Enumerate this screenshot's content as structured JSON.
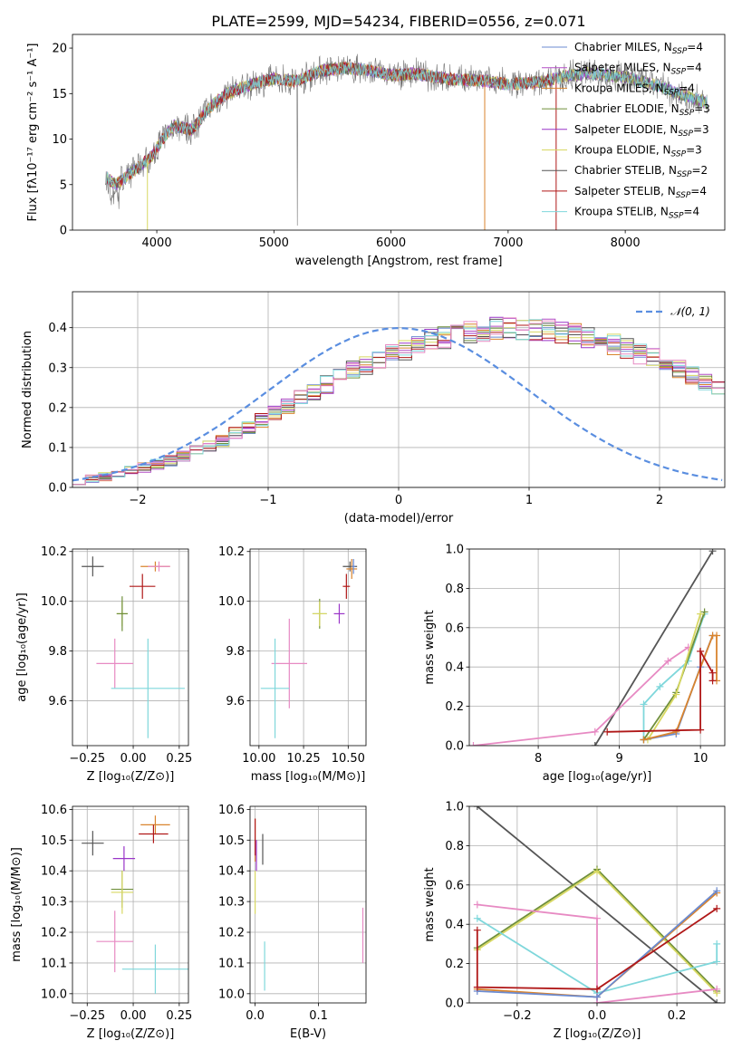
{
  "colors": {
    "Chabrier MILES": "#6b8bd1",
    "Salpeter MILES": "#b44fc6",
    "Kroupa MILES": "#d9842e",
    "Chabrier ELODIE": "#6f8f3b",
    "Salpeter ELODIE": "#9a35c8",
    "Kroupa ELODIE": "#d8d862",
    "Chabrier STELIB": "#555555",
    "Salpeter STELIB": "#b01818",
    "Kroupa STELIB": "#7fd7db",
    "extra_pink": "#e78ac3",
    "gaussian": "#5a8ee0"
  },
  "chart_data": [
    {
      "id": "spectrum",
      "type": "line",
      "title": "PLATE=2599, MJD=54234, FIBERID=0556, z=0.071",
      "xlabel": "wavelength [Angstrom, rest frame]",
      "ylabel": "Flux [fλ10⁻¹⁷ erg cm⁻² s⁻¹ A⁻¹]",
      "xlim": [
        3280,
        8850
      ],
      "ylim": [
        0,
        21.5
      ],
      "xticks": [
        4000,
        5000,
        6000,
        7000,
        8000
      ],
      "yticks": [
        0,
        5,
        10,
        15,
        20
      ],
      "legend_position": "top-right",
      "legend": [
        {
          "name": "Chabrier MILES, N_SSP=4",
          "color": "#6b8bd1"
        },
        {
          "name": "Salpeter MILES, N_SSP=4",
          "color": "#b44fc6"
        },
        {
          "name": "Kroupa MILES, N_SSP=4",
          "color": "#d9842e"
        },
        {
          "name": "Chabrier ELODIE, N_SSP=3",
          "color": "#6f8f3b"
        },
        {
          "name": "Salpeter ELODIE, N_SSP=3",
          "color": "#9a35c8"
        },
        {
          "name": "Kroupa ELODIE, N_SSP=3",
          "color": "#d8d862"
        },
        {
          "name": "Chabrier STELIB, N_SSP=2",
          "color": "#555555"
        },
        {
          "name": "Salpeter STELIB, N_SSP=4",
          "color": "#b01818"
        },
        {
          "name": "Kroupa STELIB, N_SSP=4",
          "color": "#7fd7db"
        }
      ],
      "continuum": [
        [
          3550,
          6.0
        ],
        [
          3650,
          5.0
        ],
        [
          3800,
          6.5
        ],
        [
          3950,
          8.0
        ],
        [
          4050,
          10.0
        ],
        [
          4150,
          11.5
        ],
        [
          4300,
          11.0
        ],
        [
          4450,
          13.5
        ],
        [
          4600,
          15.0
        ],
        [
          4800,
          16.0
        ],
        [
          5000,
          16.6
        ],
        [
          5200,
          16.4
        ],
        [
          5400,
          17.5
        ],
        [
          5600,
          17.8
        ],
        [
          5800,
          17.6
        ],
        [
          6000,
          17.0
        ],
        [
          6200,
          17.2
        ],
        [
          6500,
          16.6
        ],
        [
          6800,
          16.4
        ],
        [
          7000,
          16.0
        ],
        [
          7300,
          16.3
        ],
        [
          7500,
          17.0
        ],
        [
          7700,
          17.2
        ],
        [
          8000,
          16.8
        ],
        [
          8300,
          15.8
        ],
        [
          8500,
          14.8
        ],
        [
          8700,
          14.0
        ]
      ]
    },
    {
      "id": "residuals",
      "type": "bar",
      "xlabel": "(data-model)/error",
      "ylabel": "Normed distribution",
      "xlim": [
        -2.5,
        2.5
      ],
      "ylim": [
        0,
        0.49
      ],
      "xticks": [
        -2,
        -1,
        0,
        1,
        2
      ],
      "yticks": [
        0.0,
        0.1,
        0.2,
        0.3,
        0.4
      ],
      "legend": [
        {
          "name": "𝒩(0, 1)",
          "color": "#5a8ee0"
        }
      ],
      "legend_position": "top-right",
      "bin_width": 0.1,
      "bin_start": -2.5,
      "envelope": [
        0.018,
        0.022,
        0.028,
        0.035,
        0.042,
        0.05,
        0.058,
        0.066,
        0.078,
        0.09,
        0.104,
        0.118,
        0.134,
        0.15,
        0.168,
        0.186,
        0.205,
        0.222,
        0.24,
        0.258,
        0.275,
        0.292,
        0.306,
        0.32,
        0.334,
        0.346,
        0.358,
        0.368,
        0.376,
        0.384,
        0.39,
        0.394,
        0.398,
        0.4,
        0.399,
        0.397,
        0.393,
        0.388,
        0.382,
        0.374,
        0.366,
        0.356,
        0.346,
        0.334,
        0.322,
        0.308,
        0.294,
        0.28,
        0.264,
        0.248
      ]
    },
    {
      "id": "age_vs_Z",
      "type": "scatter",
      "xlabel": "Z [log₁₀(Z/Z⊙)]",
      "ylabel": "age [log₁₀(age/yr)]",
      "xlim": [
        -0.33,
        0.3
      ],
      "ylim": [
        9.42,
        10.21
      ],
      "xticks": [
        -0.25,
        0.0,
        0.25
      ],
      "yticks": [
        9.6,
        9.8,
        10.0,
        10.2
      ],
      "points": [
        {
          "x": -0.22,
          "y": 10.14,
          "xerr": 0.06,
          "yerr": 0.04,
          "color": "#555555"
        },
        {
          "x": 0.12,
          "y": 10.14,
          "xerr": 0.08,
          "yerr": 0.02,
          "color": "#d9842e"
        },
        {
          "x": 0.14,
          "y": 10.14,
          "xerr": 0.06,
          "yerr": 0.02,
          "color": "#e78ac3"
        },
        {
          "x": 0.05,
          "y": 10.06,
          "xerr": 0.07,
          "yerr": 0.05,
          "color": "#b01818"
        },
        {
          "x": -0.06,
          "y": 9.95,
          "xerr": 0.03,
          "yerr": 0.05,
          "color": "#d8d862"
        },
        {
          "x": -0.06,
          "y": 9.95,
          "xerr": 0.03,
          "yerr": 0.07,
          "color": "#6f8f3b"
        },
        {
          "x": -0.1,
          "y": 9.75,
          "xerr": 0.1,
          "yerr": 0.1,
          "color": "#e78ac3"
        },
        {
          "x": 0.08,
          "y": 9.65,
          "xerr": 0.2,
          "yerr": 0.2,
          "color": "#7fd7db"
        }
      ]
    },
    {
      "id": "age_vs_mass",
      "type": "scatter",
      "xlabel": "mass [log₁₀(M/M⊙)]",
      "xlim": [
        9.95,
        10.6
      ],
      "ylim": [
        9.42,
        10.21
      ],
      "xticks": [
        10.0,
        10.25,
        10.5
      ],
      "yticks": [
        9.6,
        9.8,
        10.0,
        10.2
      ],
      "points": [
        {
          "x": 10.51,
          "y": 10.14,
          "xerr": 0.04,
          "yerr": 0.02,
          "color": "#555555"
        },
        {
          "x": 10.52,
          "y": 10.13,
          "xerr": 0.03,
          "yerr": 0.04,
          "color": "#d9842e"
        },
        {
          "x": 10.53,
          "y": 10.14,
          "xerr": 0.01,
          "yerr": 0.03,
          "color": "#6b8bd1"
        },
        {
          "x": 10.49,
          "y": 10.06,
          "xerr": 0.02,
          "yerr": 0.05,
          "color": "#b01818"
        },
        {
          "x": 10.45,
          "y": 9.95,
          "xerr": 0.03,
          "yerr": 0.04,
          "color": "#9a35c8"
        },
        {
          "x": 10.34,
          "y": 9.95,
          "xerr": 0.04,
          "yerr": 0.06,
          "color": "#6f8f3b"
        },
        {
          "x": 10.34,
          "y": 9.95,
          "xerr": 0.04,
          "yerr": 0.05,
          "color": "#d8d862"
        },
        {
          "x": 10.17,
          "y": 9.75,
          "xerr": 0.1,
          "yerr": 0.18,
          "color": "#e78ac3"
        },
        {
          "x": 10.09,
          "y": 9.65,
          "xerr": 0.08,
          "yerr": 0.2,
          "color": "#7fd7db"
        }
      ]
    },
    {
      "id": "massweight_vs_age",
      "type": "line",
      "xlabel": "age [log₁₀(age/yr)]",
      "ylabel": "mass weight",
      "xlim": [
        7.15,
        10.3
      ],
      "ylim": [
        0,
        1.0
      ],
      "xticks": [
        8,
        9,
        10
      ],
      "yticks": [
        0.0,
        0.2,
        0.4,
        0.6,
        0.8,
        1.0
      ],
      "series": [
        {
          "color": "#555555",
          "x": [
            8.7,
            10.15
          ],
          "y": [
            0.0,
            0.99
          ]
        },
        {
          "color": "#e78ac3",
          "x": [
            7.2,
            8.7,
            9.6,
            9.85
          ],
          "y": [
            0.0,
            0.07,
            0.43,
            0.5
          ]
        },
        {
          "color": "#7fd7db",
          "x": [
            9.3,
            9.3,
            9.5,
            9.85,
            10.05
          ],
          "y": [
            0.03,
            0.21,
            0.3,
            0.43,
            0.67
          ]
        },
        {
          "color": "#6f8f3b",
          "x": [
            9.3,
            9.7,
            10.05
          ],
          "y": [
            0.03,
            0.27,
            0.68
          ]
        },
        {
          "color": "#d8d862",
          "x": [
            9.35,
            9.7,
            10.0
          ],
          "y": [
            0.03,
            0.26,
            0.67
          ]
        },
        {
          "color": "#6b8bd1",
          "x": [
            9.3,
            9.7,
            10.0,
            10.15
          ],
          "y": [
            0.03,
            0.06,
            0.4,
            0.56
          ]
        },
        {
          "color": "#d9842e",
          "x": [
            9.3,
            9.7,
            10.15,
            10.2,
            10.2
          ],
          "y": [
            0.03,
            0.07,
            0.56,
            0.56,
            0.33
          ]
        },
        {
          "color": "#b01818",
          "x": [
            8.85,
            10.0,
            10.0,
            10.15,
            10.15
          ],
          "y": [
            0.07,
            0.08,
            0.48,
            0.37,
            0.33
          ]
        }
      ]
    },
    {
      "id": "mass_vs_Z",
      "type": "scatter",
      "xlabel": "Z [log₁₀(Z/Z⊙)]",
      "ylabel": "mass [log₁₀(M/M⊙)]",
      "xlim": [
        -0.33,
        0.3
      ],
      "ylim": [
        9.97,
        10.61
      ],
      "xticks": [
        -0.25,
        0.0,
        0.25
      ],
      "yticks": [
        10.0,
        10.1,
        10.2,
        10.3,
        10.4,
        10.5,
        10.6
      ],
      "points": [
        {
          "x": -0.22,
          "y": 10.49,
          "xerr": 0.06,
          "yerr": 0.04,
          "color": "#555555"
        },
        {
          "x": 0.12,
          "y": 10.55,
          "xerr": 0.08,
          "yerr": 0.03,
          "color": "#d9842e"
        },
        {
          "x": 0.11,
          "y": 10.52,
          "xerr": 0.08,
          "yerr": 0.03,
          "color": "#b01818"
        },
        {
          "x": -0.05,
          "y": 10.44,
          "xerr": 0.06,
          "yerr": 0.04,
          "color": "#9a35c8"
        },
        {
          "x": -0.06,
          "y": 10.34,
          "xerr": 0.06,
          "yerr": 0.06,
          "color": "#6f8f3b"
        },
        {
          "x": -0.06,
          "y": 10.33,
          "xerr": 0.06,
          "yerr": 0.07,
          "color": "#d8d862"
        },
        {
          "x": -0.1,
          "y": 10.17,
          "xerr": 0.1,
          "yerr": 0.1,
          "color": "#e78ac3"
        },
        {
          "x": 0.12,
          "y": 10.08,
          "xerr": 0.18,
          "yerr": 0.08,
          "color": "#7fd7db"
        }
      ]
    },
    {
      "id": "mass_vs_ebv",
      "type": "scatter",
      "xlabel": "E(B-V)",
      "xlim": [
        -0.008,
        0.175
      ],
      "ylim": [
        9.97,
        10.61
      ],
      "xticks": [
        0.0,
        0.1
      ],
      "yticks": [
        10.0,
        10.1,
        10.2,
        10.3,
        10.4,
        10.5,
        10.6
      ],
      "points": [
        {
          "x": 0.012,
          "y": 10.47,
          "xerr": 0,
          "yerr": 0.05,
          "color": "#555555"
        },
        {
          "x": 0.0,
          "y": 10.5,
          "xerr": 0,
          "yerr": 0.07,
          "color": "#d9842e"
        },
        {
          "x": 0.0,
          "y": 10.51,
          "xerr": 0,
          "yerr": 0.06,
          "color": "#b01818"
        },
        {
          "x": 0.002,
          "y": 10.45,
          "xerr": 0,
          "yerr": 0.05,
          "color": "#9a35c8"
        },
        {
          "x": 0.0,
          "y": 10.33,
          "xerr": 0,
          "yerr": 0.07,
          "color": "#d8d862"
        },
        {
          "x": 0.17,
          "y": 10.19,
          "xerr": 0,
          "yerr": 0.09,
          "color": "#e78ac3"
        },
        {
          "x": 0.015,
          "y": 10.09,
          "xerr": 0,
          "yerr": 0.08,
          "color": "#7fd7db"
        }
      ]
    },
    {
      "id": "massweight_vs_Z",
      "type": "line",
      "xlabel": "Z [log₁₀(Z/Z⊙)]",
      "ylabel": "mass weight",
      "xlim": [
        -0.32,
        0.32
      ],
      "ylim": [
        0,
        1.0
      ],
      "xticks": [
        -0.2,
        0.0,
        0.2
      ],
      "yticks": [
        0.0,
        0.2,
        0.4,
        0.6,
        0.8,
        1.0
      ],
      "series": [
        {
          "color": "#555555",
          "x": [
            -0.3,
            0.3
          ],
          "y": [
            1.0,
            0.0
          ]
        },
        {
          "color": "#6f8f3b",
          "x": [
            -0.3,
            0.0,
            0.3
          ],
          "y": [
            0.28,
            0.68,
            0.06
          ]
        },
        {
          "color": "#d8d862",
          "x": [
            -0.3,
            0.0,
            0.3
          ],
          "y": [
            0.27,
            0.67,
            0.05
          ]
        },
        {
          "color": "#e78ac3",
          "x": [
            -0.3,
            0.0,
            0.0,
            0.3
          ],
          "y": [
            0.5,
            0.43,
            0.0,
            0.07
          ]
        },
        {
          "color": "#7fd7db",
          "x": [
            -0.3,
            0.0,
            0.3,
            0.3
          ],
          "y": [
            0.43,
            0.05,
            0.21,
            0.3
          ]
        },
        {
          "color": "#d9842e",
          "x": [
            -0.3,
            0.0,
            0.3
          ],
          "y": [
            0.07,
            0.03,
            0.56
          ]
        },
        {
          "color": "#6b8bd1",
          "x": [
            -0.3,
            0.0,
            0.3
          ],
          "y": [
            0.06,
            0.03,
            0.57
          ]
        },
        {
          "color": "#b01818",
          "x": [
            -0.3,
            -0.3,
            0.0,
            0.3
          ],
          "y": [
            0.37,
            0.08,
            0.07,
            0.48
          ]
        }
      ]
    }
  ]
}
